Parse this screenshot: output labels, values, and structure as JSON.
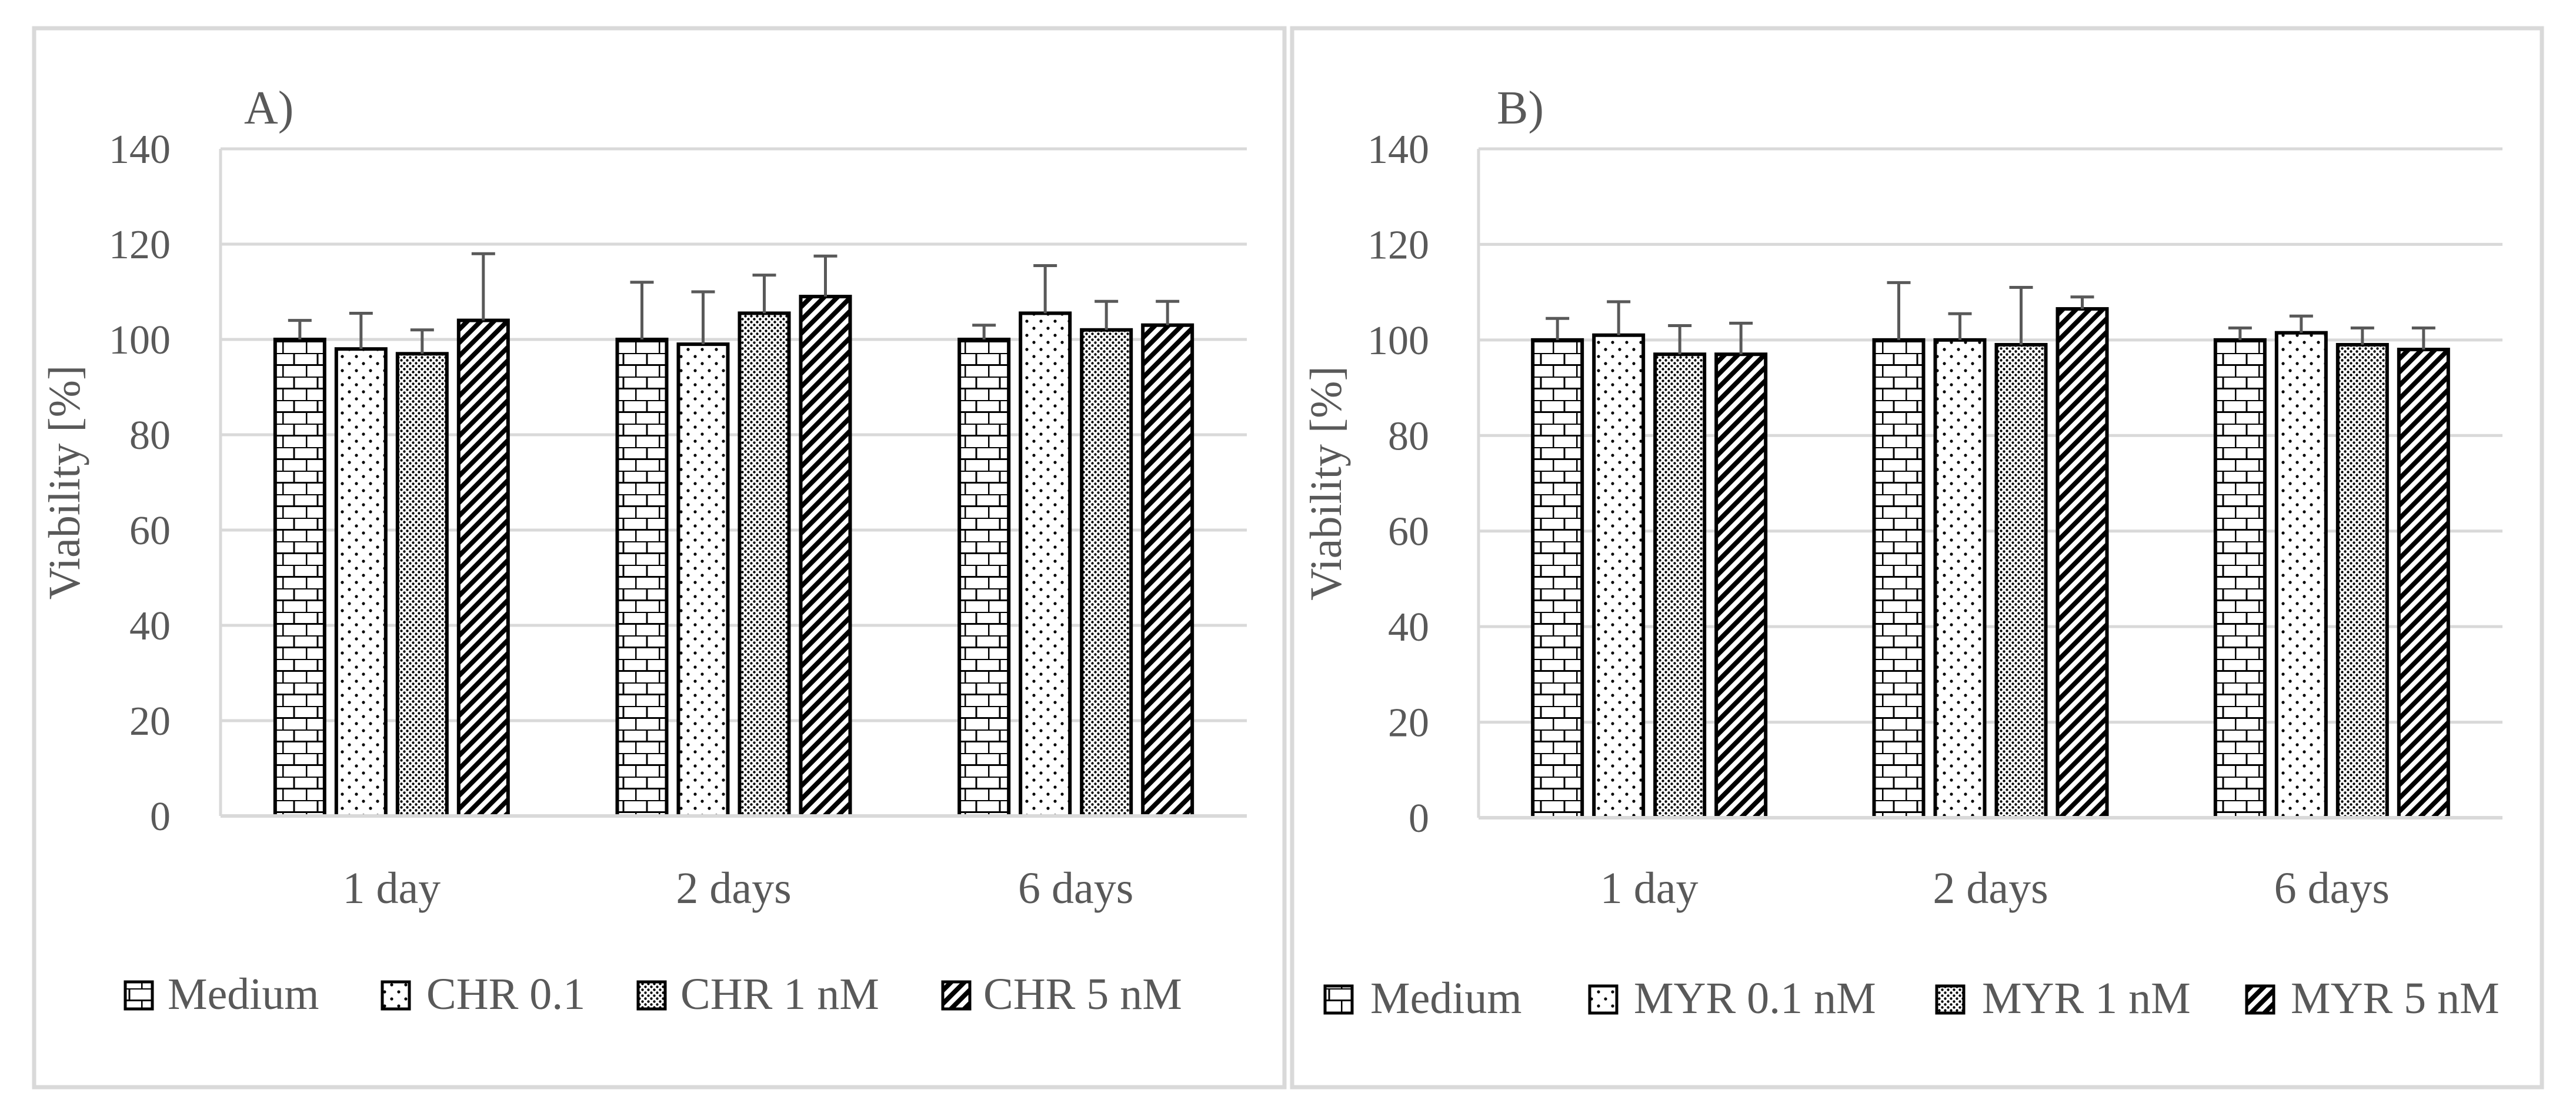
{
  "chart_data": [
    {
      "panel_label": "A)",
      "type": "bar",
      "ylabel": "Viability [%]",
      "xlabel": "",
      "ylim": [
        0,
        140
      ],
      "yticks": [
        "0",
        "20",
        "40",
        "60",
        "80",
        "100",
        "120",
        "140"
      ],
      "grid": true,
      "legend_position": "bottom",
      "categories": [
        "1 day",
        "2 days",
        "6 days"
      ],
      "series": [
        {
          "name": "Medium",
          "pattern": "brick",
          "values": [
            100,
            100,
            100
          ],
          "errors": [
            4,
            12,
            3
          ]
        },
        {
          "name": "CHR 0.1",
          "pattern": "sparse-dots",
          "values": [
            98,
            99,
            105.5
          ],
          "errors": [
            7.5,
            11,
            10
          ]
        },
        {
          "name": "CHR 1 nM",
          "pattern": "dense-dots",
          "values": [
            97,
            105.5,
            102
          ],
          "errors": [
            5,
            8,
            6
          ]
        },
        {
          "name": "CHR 5 nM",
          "pattern": "diagonal",
          "values": [
            104,
            109,
            103
          ],
          "errors": [
            14,
            8.5,
            5
          ]
        }
      ]
    },
    {
      "panel_label": "B)",
      "type": "bar",
      "ylabel": "Viability [%]",
      "xlabel": "",
      "ylim": [
        0,
        140
      ],
      "yticks": [
        "0",
        "20",
        "40",
        "60",
        "80",
        "100",
        "120",
        "140"
      ],
      "grid": true,
      "legend_position": "bottom",
      "categories": [
        "1 day",
        "2 days",
        "6 days"
      ],
      "series": [
        {
          "name": "Medium",
          "pattern": "brick",
          "values": [
            100,
            100,
            100
          ],
          "errors": [
            4.5,
            12,
            2.5
          ]
        },
        {
          "name": "MYR 0.1 nM",
          "pattern": "sparse-dots",
          "values": [
            101,
            100,
            101.5
          ],
          "errors": [
            7,
            5.5,
            3.5
          ]
        },
        {
          "name": "MYR 1 nM",
          "pattern": "dense-dots",
          "values": [
            97,
            99,
            99
          ],
          "errors": [
            6,
            12,
            3.5
          ]
        },
        {
          "name": "MYR 5 nM",
          "pattern": "diagonal",
          "values": [
            97,
            106.5,
            98
          ],
          "errors": [
            6.5,
            2.5,
            4.5
          ]
        }
      ]
    }
  ],
  "colors": {
    "bar_stroke": "#000000",
    "grid": "#d9d9d9",
    "axis_text": "#595959",
    "error_bar": "#595959",
    "frame": "#d9d9d9",
    "background": "#ffffff"
  }
}
